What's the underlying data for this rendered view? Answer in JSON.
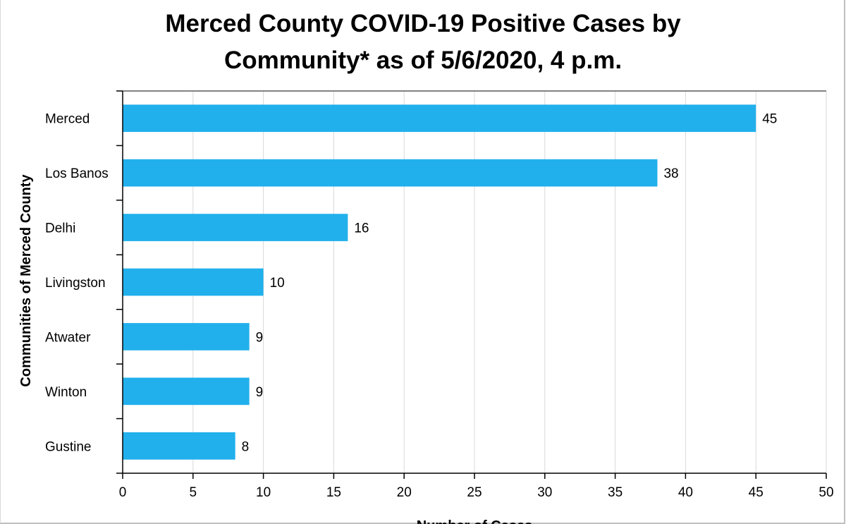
{
  "chart_data": {
    "type": "bar",
    "orientation": "horizontal",
    "title": "Merced County COVID-19 Positive Cases by Community* as of 5/6/2020, 4 p.m.",
    "title_lines": [
      "Merced County COVID-19 Positive Cases by",
      "Community* as of 5/6/2020, 4 p.m."
    ],
    "xlabel": "Number of Cases",
    "ylabel": "Communities of Merced County",
    "categories": [
      "Merced",
      "Los Banos",
      "Delhi",
      "Livingston",
      "Atwater",
      "Winton",
      "Gustine"
    ],
    "values": [
      45,
      38,
      16,
      10,
      9,
      9,
      8
    ],
    "data_labels": [
      "45",
      "38",
      "16",
      "10",
      "9",
      "9",
      "8"
    ],
    "xlim": [
      0,
      50
    ],
    "xticks": [
      "0",
      "5",
      "10",
      "15",
      "20",
      "25",
      "30",
      "35",
      "40",
      "45",
      "50"
    ],
    "grid": "vertical",
    "legend": "none",
    "colors": {
      "bar": "#21b0ec",
      "grid": "#d9d9d9",
      "axis": "#000000"
    }
  }
}
